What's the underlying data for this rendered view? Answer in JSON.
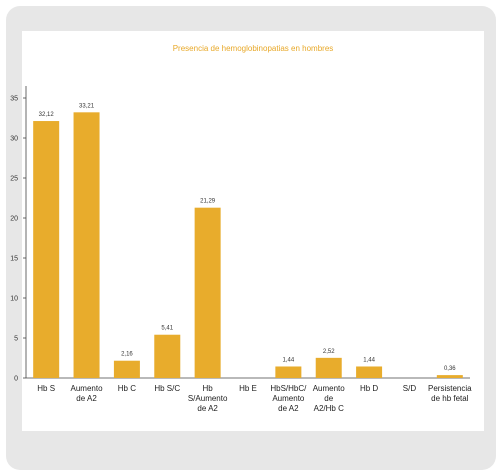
{
  "chart_data": {
    "type": "bar",
    "title": "Presencia de hemoglobinopatias en hombres",
    "categories": [
      "Hb S",
      "Aumento de A2",
      "Hb C",
      "Hb S/C",
      "Hb S/Aumento de A2",
      "Hb E",
      "HbS/HbC/ Aumento de A2",
      "Aumento de A2/Hb C",
      "Hb D",
      "S/D",
      "Persistencia de hb fetal"
    ],
    "category_lines": [
      [
        "Hb S"
      ],
      [
        "Aumento",
        "de  A2"
      ],
      [
        "Hb C"
      ],
      [
        "Hb S/C"
      ],
      [
        "Hb",
        "S/Aumento",
        "de A2"
      ],
      [
        "Hb E"
      ],
      [
        "HbS/HbC/",
        "Aumento",
        "de A2"
      ],
      [
        "Aumento",
        "de",
        "A2/Hb C"
      ],
      [
        "Hb D"
      ],
      [
        "S/D"
      ],
      [
        "Persistencia",
        "de hb fetal"
      ]
    ],
    "values": [
      32.12,
      33.21,
      2.16,
      5.41,
      21.29,
      null,
      1.44,
      2.52,
      1.44,
      null,
      0.36
    ],
    "value_labels": [
      "32,12",
      "33,21",
      "2,16",
      "5,41",
      "21,29",
      "",
      "1,44",
      "2,52",
      "1,44",
      "",
      "0,36"
    ],
    "ylim": [
      0,
      35
    ],
    "yticks": [
      0,
      5,
      10,
      15,
      20,
      25,
      30,
      35
    ],
    "grid": false,
    "xlabel": "",
    "ylabel": "",
    "colors": {
      "bar": "#e8ac2c",
      "title": "#e8a828",
      "axis": "#444444"
    }
  }
}
